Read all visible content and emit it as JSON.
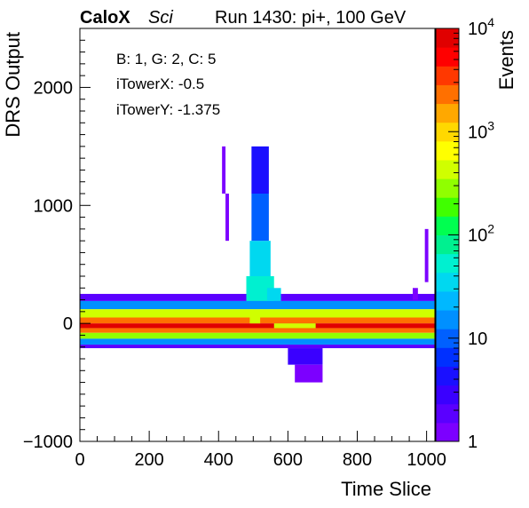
{
  "header": {
    "brand": "CaloX",
    "tag": "Sci",
    "run_info": "Run 1430: pi+, 100 GeV"
  },
  "annotations": [
    "B: 1, G: 2, C: 5",
    "iTowerX: -0.5",
    "iTowerY: -1.375"
  ],
  "chart_data": {
    "type": "heatmap",
    "xlabel": "Time Slice",
    "ylabel": "DRS Output",
    "zlabel": "Events",
    "xlim": [
      0,
      1024
    ],
    "ylim": [
      -1000,
      2500
    ],
    "zlim": [
      1,
      10000
    ],
    "z_log": true,
    "x_ticks": [
      0,
      200,
      400,
      600,
      800,
      1000
    ],
    "y_ticks": [
      -1000,
      0,
      1000,
      2000
    ],
    "z_ticks": [
      {
        "value": 1,
        "label": "1"
      },
      {
        "value": 10,
        "label": "10"
      },
      {
        "value": 100,
        "label": "10",
        "sup": "2"
      },
      {
        "value": 1000,
        "label": "10",
        "sup": "3"
      },
      {
        "value": 10000,
        "label": "10",
        "sup": "4"
      }
    ],
    "palette": [
      "#7c00ff",
      "#5a00ff",
      "#3a00ff",
      "#1a10ff",
      "#0030ff",
      "#0060ff",
      "#0090ff",
      "#00b8ff",
      "#00d8f0",
      "#00f0d0",
      "#00f090",
      "#00ff50",
      "#40ff00",
      "#90ff00",
      "#d0ff00",
      "#ffff00",
      "#ffd800",
      "#ffa800",
      "#ff7000",
      "#ff3800",
      "#ff0000",
      "#e00000"
    ],
    "bins": [
      {
        "x": [
          0,
          1024
        ],
        "y": [
          120,
          190
        ],
        "z": 15
      },
      {
        "x": [
          0,
          1024
        ],
        "y": [
          50,
          120
        ],
        "z": 500
      },
      {
        "x": [
          0,
          1024
        ],
        "y": [
          0,
          50
        ],
        "z": 2000
      },
      {
        "x": [
          0,
          1024
        ],
        "y": [
          -40,
          0
        ],
        "z": 7000
      },
      {
        "x": [
          0,
          1024
        ],
        "y": [
          -80,
          -40
        ],
        "z": 2000
      },
      {
        "x": [
          0,
          1024
        ],
        "y": [
          -130,
          -80
        ],
        "z": 300
      },
      {
        "x": [
          0,
          1024
        ],
        "y": [
          -180,
          -130
        ],
        "z": 15
      },
      {
        "x": [
          0,
          1024
        ],
        "y": [
          -210,
          -180
        ],
        "z": 2
      },
      {
        "x": [
          0,
          1024
        ],
        "y": [
          190,
          250
        ],
        "z": 2
      },
      {
        "x": [
          490,
          520
        ],
        "y": [
          0,
          50
        ],
        "z": 400
      },
      {
        "x": [
          560,
          680
        ],
        "y": [
          -40,
          0
        ],
        "z": 500
      },
      {
        "x": [
          480,
          560
        ],
        "y": [
          190,
          400
        ],
        "z": 60
      },
      {
        "x": [
          490,
          550
        ],
        "y": [
          400,
          700
        ],
        "z": 30
      },
      {
        "x": [
          495,
          545
        ],
        "y": [
          700,
          1100
        ],
        "z": 10
      },
      {
        "x": [
          495,
          545
        ],
        "y": [
          1100,
          1500
        ],
        "z": 4
      },
      {
        "x": [
          540,
          580
        ],
        "y": [
          190,
          300
        ],
        "z": 40
      },
      {
        "x": [
          600,
          700
        ],
        "y": [
          -350,
          -210
        ],
        "z": 3
      },
      {
        "x": [
          620,
          700
        ],
        "y": [
          -500,
          -350
        ],
        "z": 1
      },
      {
        "x": [
          410,
          420
        ],
        "y": [
          1100,
          1500
        ],
        "z": 1
      },
      {
        "x": [
          420,
          430
        ],
        "y": [
          700,
          1100
        ],
        "z": 1
      },
      {
        "x": [
          995,
          1005
        ],
        "y": [
          350,
          800
        ],
        "z": 1
      },
      {
        "x": [
          960,
          975
        ],
        "y": [
          200,
          300
        ],
        "z": 1
      }
    ]
  }
}
